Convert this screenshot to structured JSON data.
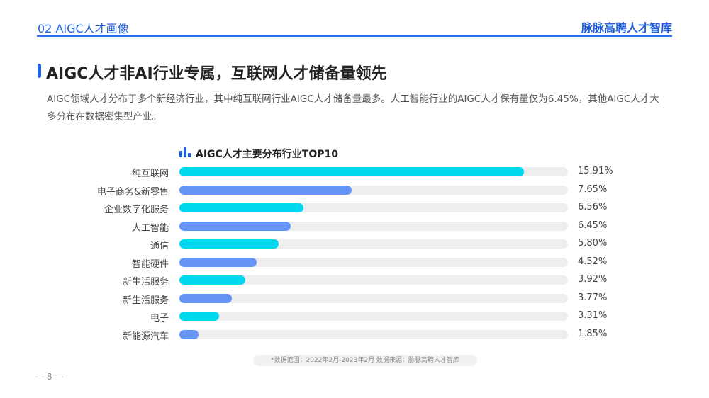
{
  "header": {
    "section": "02 AIGC人才画像",
    "brand": "脉脉高聘人才智库"
  },
  "title": "AIGC人才非AI行业专属，互联网人才储备量领先",
  "description": "AIGC领域人才分布于多个新经济行业，其中纯互联网行业AIGC人才储备量最多。人工智能行业的AIGC人才保有量仅为6.45%，其他AIGC人才大多分布在数据密集型产业。",
  "colors": {
    "cyan": "#00d8f0",
    "blue": "#6495f7",
    "track": "#eeeeee"
  },
  "chart_data": {
    "type": "bar",
    "orientation": "horizontal",
    "title": "AIGC人才主要分布行业TOP10",
    "categories": [
      "纯互联网",
      "电子商务&新零售",
      "企业数字化服务",
      "人工智能",
      "通信",
      "智能硬件",
      "新生活服务",
      "新生活服务",
      "电子",
      "新能源汽车"
    ],
    "values": [
      15.91,
      7.65,
      6.56,
      6.45,
      5.8,
      4.52,
      3.92,
      3.77,
      3.31,
      1.85
    ],
    "labels": [
      "15.91%",
      "7.65%",
      "6.56%",
      "6.45%",
      "5.80%",
      "4.52%",
      "3.92%",
      "3.77%",
      "3.31%",
      "1.85%"
    ],
    "fill_fraction": [
      0.887,
      0.444,
      0.32,
      0.287,
      0.256,
      0.199,
      0.17,
      0.135,
      0.102,
      0.049
    ],
    "unit": "%"
  },
  "footnote": "*数据范围：2022年2月-2023年2月     数据来源：脉脉高聘人才智库",
  "page_number": "— 8 —"
}
